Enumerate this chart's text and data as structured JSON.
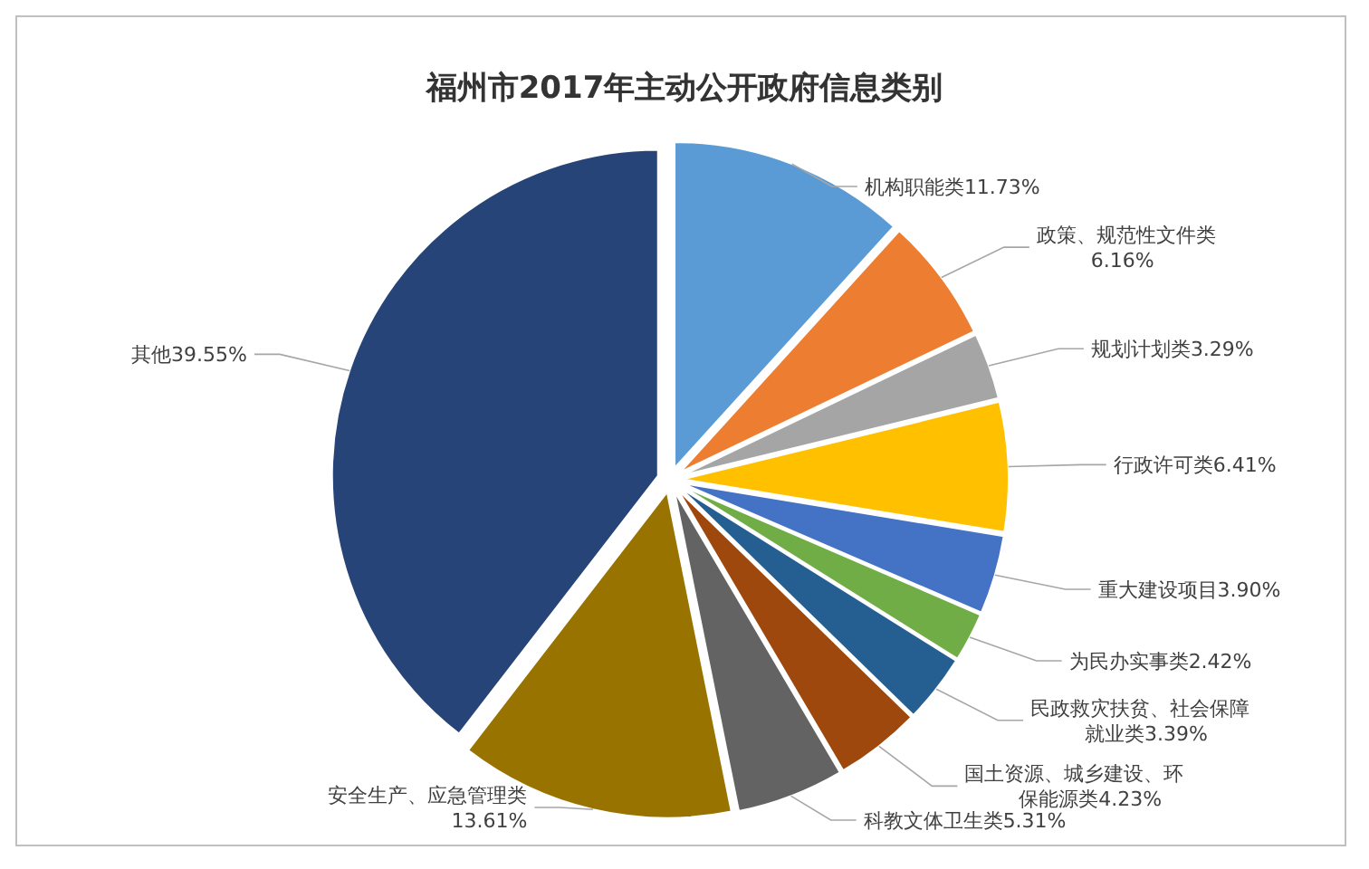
{
  "chart_data": {
    "type": "pie",
    "title": "福州市2017年主动公开政府信息类别",
    "categories": [
      "机构职能类",
      "政策、规范性文件类",
      "规划计划类",
      "行政许可类",
      "重大建设项目",
      "为民办实事类",
      "民政救灾扶贫、社会保障就业类",
      "国土资源、城乡建设、环保能源类",
      "科教文体卫生类",
      "安全生产、应急管理类",
      "其他"
    ],
    "values": [
      11.73,
      6.16,
      3.29,
      6.41,
      3.9,
      2.42,
      3.39,
      4.23,
      5.31,
      13.61,
      39.55
    ],
    "value_labels": [
      "11.73%",
      "6.16%",
      "3.29%",
      "6.41%",
      "3.90%",
      "2.42%",
      "3.39%",
      "4.23%",
      "5.31%",
      "13.61%",
      "39.55%"
    ],
    "colors": [
      "#5b9bd5",
      "#ed7d31",
      "#a5a5a5",
      "#ffc000",
      "#4472c4",
      "#70ad47",
      "#255e91",
      "#9e480e",
      "#636363",
      "#997300",
      "#264478"
    ]
  }
}
